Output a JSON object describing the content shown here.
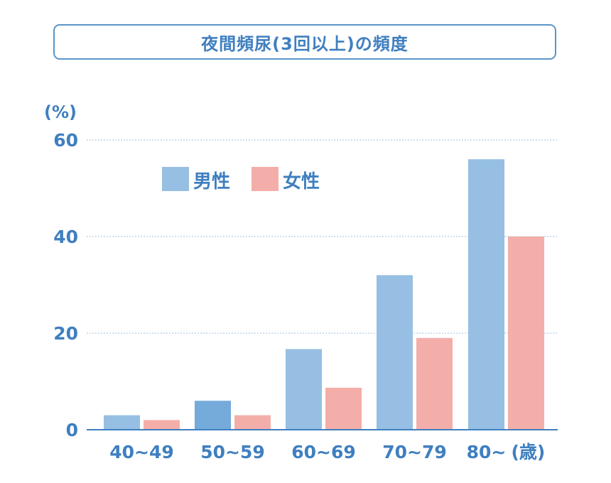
{
  "title": "夜間頻尿(3回以上)の頻度",
  "chart_data": {
    "type": "bar",
    "title": "夜間頻尿(3回以上)の頻度",
    "ylabel": "(%)",
    "xlabel": "(歳)",
    "categories": [
      "40~49",
      "50~59",
      "60~69",
      "70~79",
      "80~"
    ],
    "series": [
      {
        "name": "男性",
        "values": [
          3,
          6,
          16.7,
          32,
          56
        ],
        "color": "#96bfe3"
      },
      {
        "name": "女性",
        "values": [
          2,
          3,
          8.7,
          19,
          40
        ],
        "color": "#f4aea9"
      }
    ],
    "highlight": {
      "series": 0,
      "index": 1,
      "color": "#74abdb"
    },
    "ylim": [
      0,
      60
    ],
    "yticks": [
      0,
      20,
      40,
      60
    ],
    "grid": true,
    "legend": "top-left"
  }
}
